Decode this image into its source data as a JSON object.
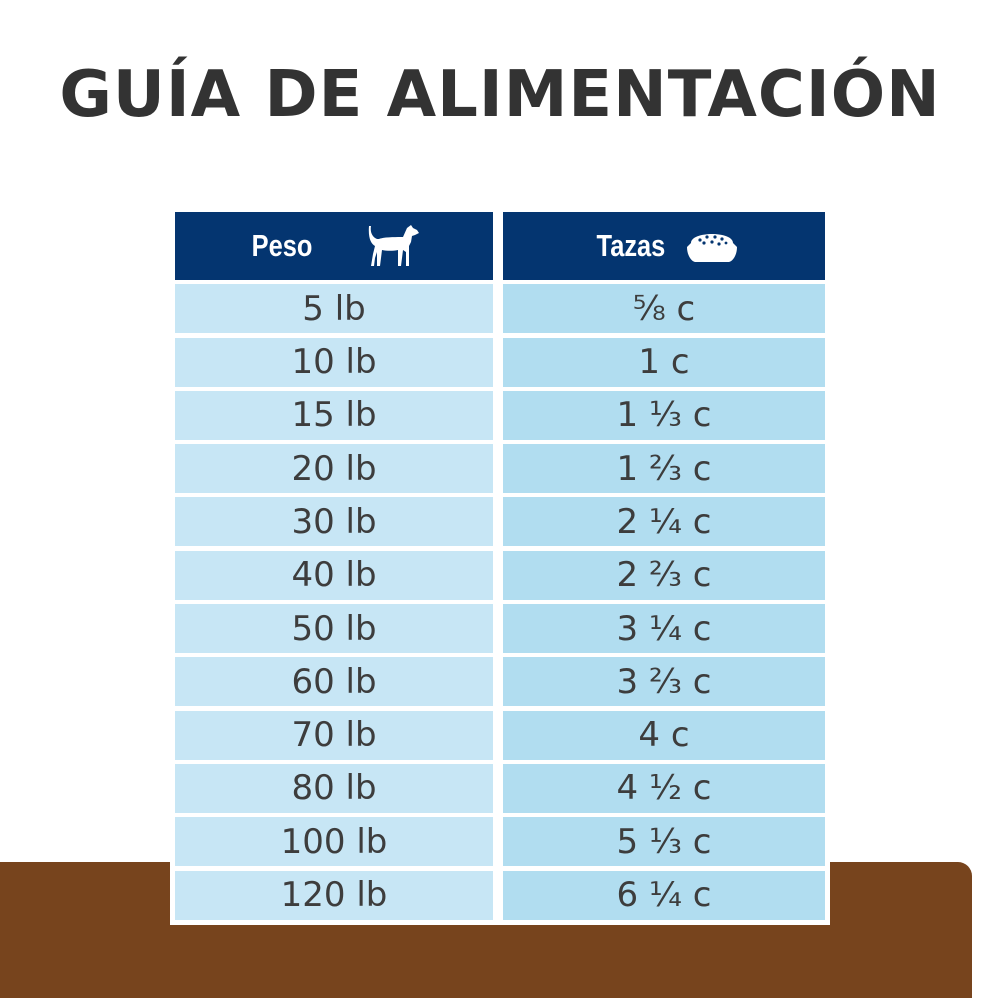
{
  "title": "GUÍA DE ALIMENTACIÓN",
  "header": {
    "weight": "Peso",
    "weight_icon": "dog-icon",
    "cups": "Tazas",
    "cups_icon": "food-bowl-icon"
  },
  "colors": {
    "header": "#043570",
    "weight_cell": "#c7e6f5",
    "cups_cell": "#b1ddf0",
    "ground": "#77441d"
  },
  "rows": [
    {
      "weight": "5 lb",
      "cups": "⅝ c"
    },
    {
      "weight": "10 lb",
      "cups": "1 c"
    },
    {
      "weight": "15 lb",
      "cups": "1 ⅓ c"
    },
    {
      "weight": "20 lb",
      "cups": "1 ⅔ c"
    },
    {
      "weight": "30 lb",
      "cups": "2 ¼ c"
    },
    {
      "weight": "40 lb",
      "cups": "2 ⅔ c"
    },
    {
      "weight": "50 lb",
      "cups": "3 ¼ c"
    },
    {
      "weight": "60 lb",
      "cups": "3 ⅔ c"
    },
    {
      "weight": "70 lb",
      "cups": "4 c"
    },
    {
      "weight": "80 lb",
      "cups": "4 ½ c"
    },
    {
      "weight": "100 lb",
      "cups": "5 ⅓ c"
    },
    {
      "weight": "120 lb",
      "cups": "6 ¼ c"
    }
  ]
}
